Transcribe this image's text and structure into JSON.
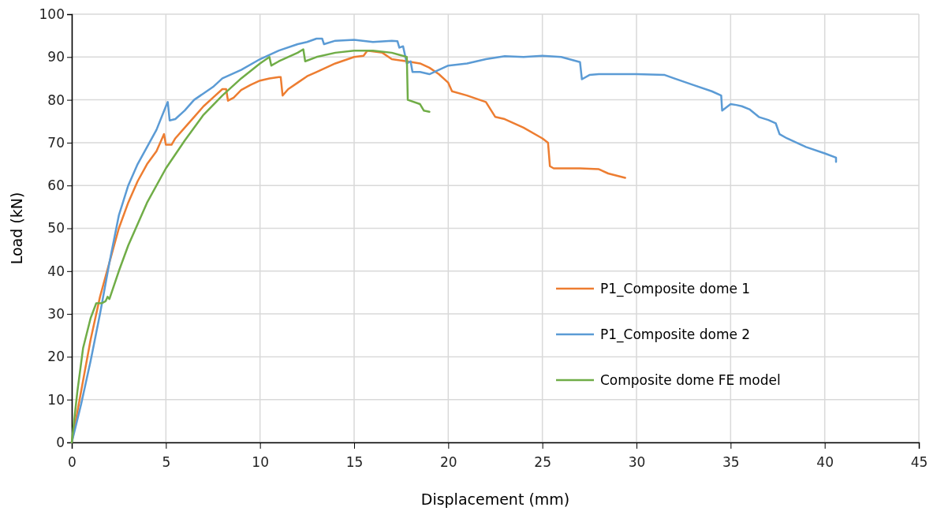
{
  "chart_data": {
    "type": "line",
    "xlabel": "Displacement (mm)",
    "ylabel": "Load (kN)",
    "xlim": [
      0,
      45
    ],
    "ylim": [
      0,
      100
    ],
    "xticks": [
      0,
      5,
      10,
      15,
      20,
      25,
      30,
      35,
      40,
      45
    ],
    "yticks": [
      0,
      10,
      20,
      30,
      40,
      50,
      60,
      70,
      80,
      90,
      100
    ],
    "grid": true,
    "legend": "right",
    "marker": "none",
    "line_style": "solid",
    "series": [
      {
        "name": "P1_Composite dome 1",
        "color": "#ed7d31",
        "x": [
          0,
          0.5,
          1,
          1.5,
          2,
          2.5,
          3,
          3.5,
          4,
          4.5,
          4.9,
          5,
          5.3,
          5.5,
          6,
          6.5,
          7,
          7.5,
          8,
          8.2,
          8.3,
          8.6,
          9,
          9.5,
          10,
          10.5,
          11,
          11.1,
          11.2,
          11.5,
          12,
          12.5,
          13,
          14,
          15,
          15.5,
          15.7,
          16.5,
          17,
          17.8,
          18.5,
          19,
          19.5,
          20,
          20.2,
          21,
          22,
          22.5,
          23,
          24,
          25,
          25.3,
          25.4,
          25.6,
          27,
          28,
          28.5,
          29.4
        ],
        "values": [
          0,
          12,
          24,
          34,
          42,
          50,
          56,
          61,
          65,
          68,
          72,
          69.5,
          69.5,
          71,
          73.5,
          76,
          78.5,
          80.5,
          82.5,
          82.5,
          79.8,
          80.5,
          82.3,
          83.5,
          84.5,
          85,
          85.3,
          85.3,
          81,
          82.5,
          84,
          85.5,
          86.5,
          88.5,
          90,
          90.3,
          91.5,
          91,
          89.5,
          89,
          88.5,
          87.5,
          86,
          84,
          82,
          81,
          79.5,
          76,
          75.5,
          73.5,
          71,
          70,
          64.5,
          64,
          64,
          63.8,
          62.8,
          61.8
        ]
      },
      {
        "name": "P1_Composite dome 2",
        "color": "#5b9bd5",
        "x": [
          0,
          0.5,
          1,
          1.5,
          2,
          2.5,
          3,
          3.5,
          4,
          4.5,
          5,
          5.1,
          5.2,
          5.5,
          6,
          6.5,
          7,
          7.5,
          8,
          9,
          10,
          10.5,
          11,
          12,
          12.5,
          13,
          13.3,
          13.4,
          14,
          15,
          16,
          17,
          17.3,
          17.4,
          17.6,
          17.8,
          18,
          18.1,
          18.5,
          19,
          19.5,
          20,
          21,
          22,
          23,
          24,
          25,
          26,
          27,
          27.1,
          27.5,
          28,
          30,
          31.5,
          32,
          33,
          34,
          34.5,
          34.55,
          35,
          35.3,
          35.6,
          36,
          36.5,
          37,
          37.4,
          37.6,
          38,
          39,
          40,
          40.6,
          40.6
        ],
        "values": [
          0,
          9,
          19,
          30,
          42,
          53,
          60,
          65,
          69,
          73,
          78.5,
          79.5,
          75.2,
          75.5,
          77.5,
          80,
          81.5,
          83,
          85,
          87,
          89.5,
          90.5,
          91.5,
          93,
          93.5,
          94.3,
          94.3,
          93,
          93.8,
          94,
          93.5,
          93.8,
          93.7,
          92.2,
          92.5,
          88.5,
          89,
          86.5,
          86.5,
          86,
          87,
          88,
          88.5,
          89.5,
          90.2,
          90,
          90.3,
          90,
          88.8,
          84.8,
          85.8,
          86,
          86,
          85.8,
          85,
          83.5,
          82,
          81,
          77.5,
          79,
          78.8,
          78.5,
          77.8,
          76,
          75.3,
          74.5,
          72,
          71,
          69,
          67.5,
          66.5,
          65.5
        ]
      },
      {
        "name": "Composite dome FE model",
        "color": "#70ad47",
        "x": [
          0,
          0.3,
          0.6,
          1,
          1.3,
          1.6,
          1.8,
          1.9,
          2,
          2.5,
          3,
          4,
          5,
          6,
          7,
          8,
          9,
          10,
          10.5,
          10.6,
          11,
          12,
          12.3,
          12.4,
          13,
          14,
          15,
          16,
          17,
          17.8,
          17.85,
          18.5,
          18.7,
          19
        ],
        "values": [
          0,
          12,
          22,
          29,
          32.5,
          32.5,
          33,
          34,
          33.5,
          40,
          46,
          56,
          64,
          70.5,
          76.5,
          81,
          85,
          88.5,
          90,
          88,
          89,
          91,
          91.8,
          89,
          90,
          91,
          91.5,
          91.5,
          91,
          90,
          80,
          79,
          77.5,
          77.2
        ]
      }
    ]
  }
}
